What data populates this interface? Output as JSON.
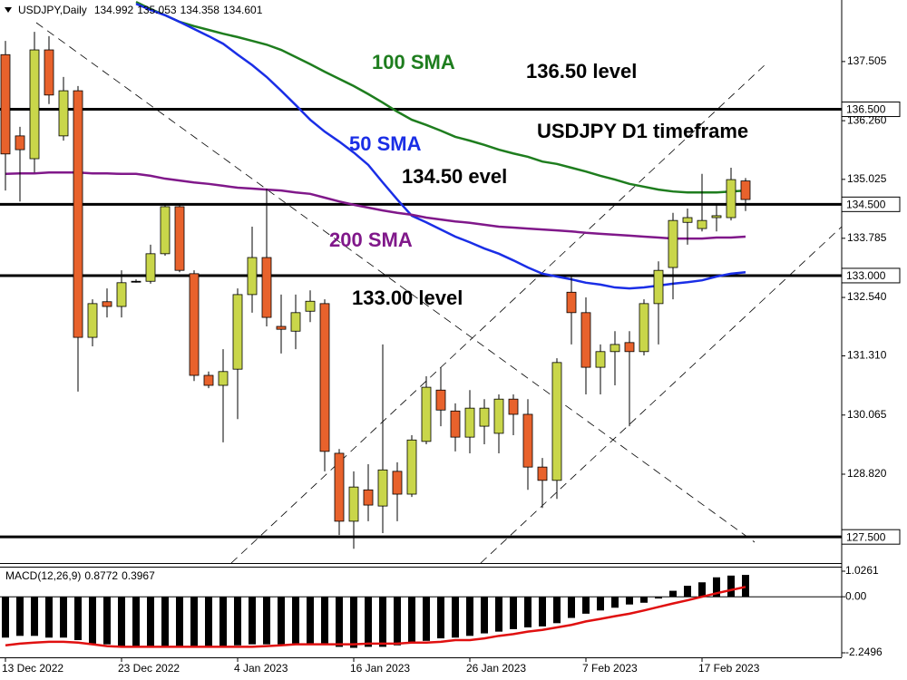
{
  "chart_data": [
    {
      "type": "candlestick",
      "title": "USDJPY,Daily",
      "categories": [
        "13 Dec 2022",
        null,
        null,
        null,
        null,
        null,
        null,
        null,
        "23 Dec 2022",
        null,
        null,
        null,
        null,
        null,
        null,
        null,
        "4 Jan 2023",
        null,
        null,
        null,
        null,
        null,
        null,
        null,
        "16 Jan 2023",
        null,
        null,
        null,
        null,
        null,
        null,
        null,
        "26 Jan 2023",
        null,
        null,
        null,
        null,
        null,
        null,
        null,
        "7 Feb 2023",
        null,
        null,
        null,
        null,
        null,
        null,
        null,
        "17 Feb 2023",
        null,
        null,
        null
      ],
      "open": [
        137.65,
        135.94,
        135.46,
        137.75,
        135.94,
        136.89,
        131.7,
        132.45,
        132.35,
        132.88,
        132.88,
        133.46,
        134.45,
        133.04,
        130.9,
        130.69,
        131.03,
        132.6,
        133.38,
        131.93,
        131.83,
        132.25,
        132.41,
        129.26,
        127.83,
        128.49,
        128.15,
        128.88,
        128.4,
        129.51,
        130.59,
        130.15,
        129.6,
        129.83,
        129.68,
        130.4,
        130.08,
        128.97,
        128.69,
        132.65,
        132.22,
        131.07,
        131.4,
        131.59,
        131.4,
        132.41,
        133.17,
        134.12,
        133.99,
        134.22,
        134.22,
        134.992
      ],
      "high": [
        137.94,
        136.13,
        138.13,
        138.04,
        137.18,
        136.99,
        132.5,
        132.73,
        133.11,
        132.92,
        133.65,
        134.51,
        134.49,
        133.11,
        130.98,
        131.45,
        132.73,
        134.03,
        134.83,
        132.6,
        132.6,
        132.69,
        132.5,
        129.35,
        128.88,
        129.03,
        131.55,
        129.07,
        129.64,
        130.88,
        131.07,
        130.31,
        130.59,
        130.4,
        130.5,
        130.5,
        130.4,
        129.16,
        131.26,
        132.98,
        132.54,
        131.55,
        131.83,
        131.83,
        132.5,
        133.3,
        134.32,
        134.41,
        135.14,
        134.51,
        135.27,
        135.053
      ],
      "low": [
        134.79,
        134.56,
        135.17,
        136.61,
        135.84,
        130.56,
        131.51,
        132.12,
        132.12,
        132.85,
        132.83,
        133.42,
        133.07,
        130.78,
        130.63,
        129.49,
        129.98,
        132.22,
        131.93,
        131.36,
        131.45,
        132.02,
        128.88,
        127.54,
        127.25,
        127.83,
        127.58,
        127.83,
        128.34,
        129.45,
        129.83,
        129.3,
        129.26,
        129.45,
        129.26,
        129.64,
        128.49,
        128.11,
        128.3,
        131.55,
        130.5,
        130.5,
        130.69,
        129.83,
        131.32,
        131.55,
        132.5,
        133.65,
        133.93,
        133.93,
        134.16,
        134.358
      ],
      "close": [
        135.56,
        135.65,
        137.75,
        136.8,
        136.89,
        131.7,
        132.41,
        132.35,
        132.85,
        132.88,
        133.46,
        134.45,
        133.11,
        130.9,
        130.69,
        130.98,
        132.6,
        133.38,
        132.12,
        131.87,
        132.22,
        132.46,
        129.3,
        127.83,
        128.55,
        128.17,
        128.91,
        128.4,
        129.54,
        130.65,
        130.17,
        129.6,
        130.21,
        130.21,
        130.4,
        130.08,
        128.97,
        128.69,
        131.17,
        132.22,
        131.07,
        131.4,
        131.55,
        131.4,
        132.41,
        133.11,
        134.16,
        134.22,
        134.16,
        134.26,
        135.02,
        134.601
      ],
      "up_color": "#c9d64a",
      "down_color": "#e8622c",
      "lines": [
        {
          "name": "100 SMA",
          "color": "#1e7d1e",
          "values": [
            null,
            null,
            null,
            null,
            null,
            null,
            null,
            null,
            null,
            138.76,
            138.61,
            138.48,
            138.34,
            138.25,
            138.17,
            138.09,
            138.02,
            137.94,
            137.86,
            137.75,
            137.6,
            137.45,
            137.29,
            137.14,
            136.99,
            136.82,
            136.64,
            136.45,
            136.28,
            136.17,
            136.05,
            135.92,
            135.84,
            135.75,
            135.65,
            135.57,
            135.5,
            135.4,
            135.35,
            135.27,
            135.19,
            135.1,
            135.02,
            134.93,
            134.87,
            134.81,
            134.77,
            134.75,
            134.75,
            134.75,
            134.77,
            134.79
          ]
        },
        {
          "name": "50 SMA",
          "color": "#1a2ee6",
          "values": [
            null,
            null,
            null,
            null,
            null,
            null,
            null,
            null,
            null,
            138.72,
            138.59,
            138.48,
            138.34,
            138.19,
            138.04,
            137.88,
            137.65,
            137.43,
            137.18,
            136.89,
            136.59,
            136.28,
            136.03,
            135.82,
            135.59,
            135.33,
            134.96,
            134.6,
            134.26,
            134.12,
            133.97,
            133.82,
            133.7,
            133.57,
            133.46,
            133.32,
            133.17,
            133.04,
            132.98,
            132.92,
            132.85,
            132.81,
            132.75,
            132.73,
            132.75,
            132.79,
            132.83,
            132.86,
            132.9,
            132.98,
            133.04,
            133.07
          ]
        },
        {
          "name": "200 SMA",
          "color": "#80188a",
          "values": [
            135.14,
            135.15,
            135.15,
            135.17,
            135.17,
            135.17,
            135.15,
            135.15,
            135.14,
            135.14,
            135.1,
            135.04,
            135.0,
            134.96,
            134.93,
            134.89,
            134.85,
            134.83,
            134.81,
            134.79,
            134.75,
            134.72,
            134.64,
            134.56,
            134.49,
            134.43,
            134.37,
            134.32,
            134.28,
            134.22,
            134.18,
            134.14,
            134.11,
            134.07,
            134.03,
            134.01,
            133.99,
            133.97,
            133.95,
            133.93,
            133.9,
            133.88,
            133.86,
            133.84,
            133.82,
            133.8,
            133.78,
            133.78,
            133.78,
            133.8,
            133.8,
            133.82
          ]
        }
      ],
      "levels": [
        {
          "value": 136.5,
          "label": "136.500"
        },
        {
          "value": 134.5,
          "label": "134.500"
        },
        {
          "value": 133.0,
          "label": "133.000"
        },
        {
          "value": 127.5,
          "label": "127.500"
        }
      ],
      "annotations": [
        "136.50 level",
        "USDJPY D1 timeframe",
        "134.50 evel",
        "133.00 level"
      ],
      "ylim": [
        126.95,
        138.8
      ],
      "yticks": [
        137.505,
        {
          "value": 136.26,
          "label": "136.260"
        },
        135.025,
        133.785,
        {
          "value": 132.54,
          "label": "132.540"
        },
        {
          "value": 131.31,
          "label": "131.310"
        },
        130.065,
        {
          "value": 128.82,
          "label": "128.820"
        }
      ]
    },
    {
      "type": "macd",
      "title": "MACD(12,26,9)",
      "histogram": {
        "color": "#000000",
        "values": [
          -1.64,
          -1.57,
          -1.57,
          -1.64,
          -1.64,
          -1.74,
          -1.88,
          -1.91,
          -2.01,
          -2.01,
          -2.05,
          -2.01,
          -1.98,
          -1.98,
          -2.01,
          -2.01,
          -1.95,
          -1.91,
          -1.91,
          -1.91,
          -1.88,
          -1.88,
          -1.88,
          -2.01,
          -2.05,
          -2.01,
          -2.01,
          -1.95,
          -1.88,
          -1.77,
          -1.67,
          -1.64,
          -1.57,
          -1.47,
          -1.4,
          -1.3,
          -1.23,
          -1.19,
          -1.06,
          -0.85,
          -0.68,
          -0.55,
          -0.44,
          -0.31,
          -0.24,
          -0.07,
          0.24,
          0.44,
          0.58,
          0.78,
          0.85,
          0.8772
        ]
      },
      "signal": {
        "color": "#e01010",
        "values": [
          -1.95,
          -1.88,
          -1.84,
          -1.81,
          -1.81,
          -1.84,
          -1.91,
          -1.98,
          -2.01,
          -2.01,
          -2.01,
          -2.01,
          -2.01,
          -2.01,
          -2.01,
          -2.01,
          -2.01,
          -2.01,
          -1.98,
          -1.95,
          -1.91,
          -1.91,
          -1.91,
          -1.91,
          -1.91,
          -1.88,
          -1.88,
          -1.88,
          -1.84,
          -1.84,
          -1.81,
          -1.74,
          -1.74,
          -1.67,
          -1.57,
          -1.5,
          -1.4,
          -1.33,
          -1.23,
          -1.13,
          -0.99,
          -0.89,
          -0.78,
          -0.68,
          -0.55,
          -0.41,
          -0.27,
          -0.14,
          0,
          0.14,
          0.27,
          0.3967
        ]
      },
      "ylim": [
        -2.2496,
        1.0261
      ],
      "yticks": [
        1.0261,
        {
          "value": 0,
          "label": "0.00"
        },
        -2.2496
      ]
    }
  ]
}
